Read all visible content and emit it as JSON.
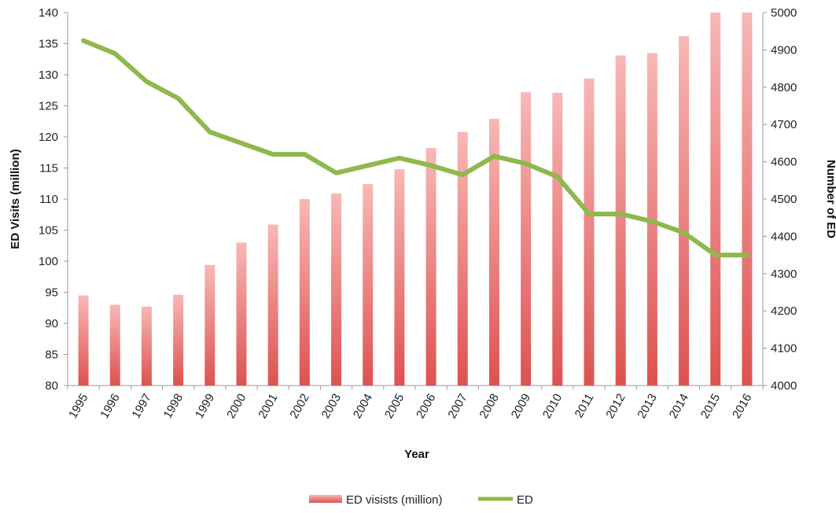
{
  "chart_data": {
    "type": "bar",
    "categories": [
      "1995",
      "1996",
      "1997",
      "1998",
      "1999",
      "2000",
      "2001",
      "2002",
      "2003",
      "2004",
      "2005",
      "2006",
      "2007",
      "2008",
      "2009",
      "2010",
      "2011",
      "2012",
      "2013",
      "2014",
      "2015",
      "2016"
    ],
    "series": [
      {
        "name": "ED visists (million)",
        "type": "bar",
        "axis": "left",
        "color": "#e4605f",
        "values": [
          94.5,
          93.0,
          92.7,
          94.6,
          99.4,
          103.0,
          105.9,
          110.0,
          110.9,
          112.4,
          114.8,
          118.2,
          120.8,
          122.9,
          127.2,
          127.1,
          129.4,
          133.1,
          133.5,
          136.2,
          140.0,
          140.0
        ]
      },
      {
        "name": "ED",
        "type": "line",
        "axis": "right",
        "color": "#8fb84d",
        "values": [
          4925,
          4890,
          4815,
          4770,
          4680,
          4650,
          4620,
          4620,
          4570,
          4590,
          4610,
          4590,
          4565,
          4615,
          4595,
          4560,
          4460,
          4460,
          4440,
          4410,
          4350,
          4350
        ]
      }
    ],
    "xlabel": "Year",
    "ylabel": "ED Visits (million)",
    "y2label": "Number of ED",
    "ylim": [
      80,
      140
    ],
    "y2lim": [
      4000,
      5000
    ],
    "yticks": [
      80,
      85,
      90,
      95,
      100,
      105,
      110,
      115,
      120,
      125,
      130,
      135,
      140
    ],
    "y2ticks": [
      4000,
      4100,
      4200,
      4300,
      4400,
      4500,
      4600,
      4700,
      4800,
      4900,
      5000
    ],
    "grid": false,
    "legend": "bottom"
  }
}
